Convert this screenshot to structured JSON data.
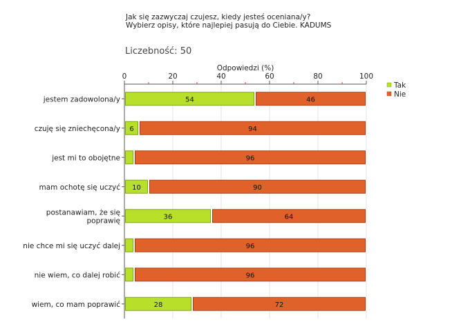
{
  "header": {
    "question": "Jak się zazwyczaj czujesz, kiedy jesteś oceniana/y?",
    "instruction": "Wybierz opisy, które najlepiej pasują do Ciebie. KADUMS"
  },
  "sample": {
    "label": "Liczebność: 50"
  },
  "chart_data": {
    "type": "bar",
    "orientation": "horizontal",
    "stacked": true,
    "xlabel": "Odpowiedzi (%)",
    "xlim": [
      0,
      100
    ],
    "xticks": [
      0,
      20,
      40,
      60,
      80,
      100
    ],
    "grid": true,
    "legend_position": "top-right",
    "categories": [
      [
        "jestem zadowolona/y"
      ],
      [
        "czuję się zniechęcona/y"
      ],
      [
        "jest mi to obojętne"
      ],
      [
        "mam ochotę się uczyć"
      ],
      [
        "postanawiam, że się",
        "poprawię"
      ],
      [
        "nie chce mi się uczyć dalej"
      ],
      [
        "nie wiem, co dalej robić"
      ],
      [
        "wiem, co mam poprawić"
      ]
    ],
    "series": [
      {
        "name": "Tak",
        "color": "#b8e02a",
        "stroke": "#7da51a",
        "values": [
          54,
          6,
          4,
          10,
          36,
          4,
          4,
          28
        ],
        "labels": [
          "54",
          "6",
          "",
          "10",
          "36",
          "",
          "",
          "28"
        ]
      },
      {
        "name": "Nie",
        "color": "#e0622a",
        "stroke": "#a8401a",
        "values": [
          46,
          94,
          96,
          90,
          64,
          96,
          96,
          72
        ],
        "labels": [
          "46",
          "94",
          "96",
          "90",
          "64",
          "96",
          "96",
          "72"
        ]
      }
    ]
  }
}
